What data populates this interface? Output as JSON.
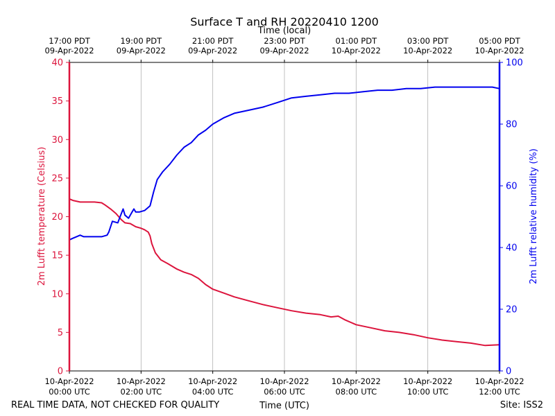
{
  "chart_data": {
    "type": "line",
    "title": "Surface T and RH 20220410 1200",
    "xlabel_bottom": "Time (UTC)",
    "xlabel_top": "Time (local)",
    "ylabel_left": "2m Lufft temperature (Celsius)",
    "ylabel_right": "2m Lufft relative humidity (%)",
    "x_unit": "hours since 10-Apr-2022 00:00 UTC",
    "xlim": [
      0,
      12
    ],
    "ylim_left": [
      0,
      40
    ],
    "ylim_right": [
      0,
      100
    ],
    "yticks_left": [
      0,
      5,
      10,
      15,
      20,
      25,
      30,
      35,
      40
    ],
    "yticks_right": [
      0,
      20,
      40,
      60,
      80,
      100
    ],
    "grid": "vertical",
    "colors": {
      "temperature": "#dc143c",
      "humidity": "#0000ee",
      "grid": "#b0b0b0"
    },
    "xticks_bottom": [
      {
        "x": 0,
        "line1": "10-Apr-2022",
        "line2": "00:00 UTC"
      },
      {
        "x": 2,
        "line1": "10-Apr-2022",
        "line2": "02:00 UTC"
      },
      {
        "x": 4,
        "line1": "10-Apr-2022",
        "line2": "04:00 UTC"
      },
      {
        "x": 6,
        "line1": "10-Apr-2022",
        "line2": "06:00 UTC"
      },
      {
        "x": 8,
        "line1": "10-Apr-2022",
        "line2": "08:00 UTC"
      },
      {
        "x": 10,
        "line1": "10-Apr-2022",
        "line2": "10:00 UTC"
      },
      {
        "x": 12,
        "line1": "10-Apr-2022",
        "line2": "12:00 UTC"
      }
    ],
    "xticks_top": [
      {
        "x": 0,
        "line1": "17:00 PDT",
        "line2": "09-Apr-2022"
      },
      {
        "x": 2,
        "line1": "19:00 PDT",
        "line2": "09-Apr-2022"
      },
      {
        "x": 4,
        "line1": "21:00 PDT",
        "line2": "09-Apr-2022"
      },
      {
        "x": 6,
        "line1": "23:00 PDT",
        "line2": "09-Apr-2022"
      },
      {
        "x": 8,
        "line1": "01:00 PDT",
        "line2": "10-Apr-2022"
      },
      {
        "x": 10,
        "line1": "03:00 PDT",
        "line2": "10-Apr-2022"
      },
      {
        "x": 12,
        "line1": "05:00 PDT",
        "line2": "10-Apr-2022"
      }
    ],
    "series": [
      {
        "name": "2m Lufft temperature (Celsius)",
        "axis": "left",
        "x": [
          0,
          0.1,
          0.3,
          0.5,
          0.7,
          0.9,
          1.0,
          1.15,
          1.3,
          1.45,
          1.55,
          1.7,
          1.85,
          2.0,
          2.1,
          2.2,
          2.25,
          2.3,
          2.4,
          2.55,
          2.75,
          3.0,
          3.2,
          3.4,
          3.6,
          3.8,
          4.0,
          4.3,
          4.6,
          5.0,
          5.4,
          5.8,
          6.2,
          6.6,
          7.0,
          7.3,
          7.5,
          7.7,
          8.0,
          8.4,
          8.8,
          9.2,
          9.6,
          10.0,
          10.4,
          10.8,
          11.2,
          11.6,
          12.0
        ],
        "values": [
          22.3,
          22.1,
          21.9,
          21.9,
          21.9,
          21.8,
          21.5,
          21.0,
          20.4,
          19.6,
          19.2,
          19.1,
          18.7,
          18.5,
          18.3,
          18.0,
          17.5,
          16.5,
          15.3,
          14.4,
          13.9,
          13.2,
          12.8,
          12.5,
          12.0,
          11.2,
          10.6,
          10.1,
          9.6,
          9.1,
          8.6,
          8.2,
          7.8,
          7.5,
          7.3,
          7.0,
          7.1,
          6.6,
          6.0,
          5.6,
          5.2,
          5.0,
          4.7,
          4.3,
          4.0,
          3.8,
          3.6,
          3.3,
          3.4
        ]
      },
      {
        "name": "2m Lufft relative humidity (%)",
        "axis": "right",
        "x": [
          0,
          0.1,
          0.2,
          0.3,
          0.4,
          0.5,
          0.7,
          0.9,
          1.05,
          1.1,
          1.2,
          1.35,
          1.4,
          1.5,
          1.55,
          1.65,
          1.75,
          1.8,
          1.85,
          1.95,
          2.1,
          2.25,
          2.35,
          2.45,
          2.6,
          2.8,
          3.0,
          3.2,
          3.4,
          3.6,
          3.8,
          4.0,
          4.3,
          4.6,
          5.0,
          5.4,
          5.8,
          6.2,
          6.6,
          7.0,
          7.4,
          7.8,
          8.2,
          8.6,
          9.0,
          9.4,
          9.8,
          10.2,
          10.6,
          11.0,
          11.4,
          11.8,
          12.0
        ],
        "values": [
          42.5,
          43.0,
          43.5,
          44.0,
          43.5,
          43.5,
          43.5,
          43.5,
          44.0,
          45.0,
          48.5,
          48.0,
          49.5,
          52.5,
          50.5,
          49.5,
          51.5,
          52.5,
          51.5,
          51.5,
          52.0,
          53.5,
          58.0,
          62.0,
          64.5,
          67.0,
          70.0,
          72.5,
          74.0,
          76.5,
          78.0,
          80.0,
          82.0,
          83.5,
          84.5,
          85.5,
          87.0,
          88.5,
          89.0,
          89.5,
          90.0,
          90.0,
          90.5,
          91.0,
          91.0,
          91.5,
          91.5,
          92.0,
          92.0,
          92.0,
          92.0,
          92.0,
          91.5
        ]
      }
    ]
  },
  "footer": {
    "left": "REAL TIME DATA, NOT CHECKED FOR QUALITY",
    "right": "Site: ISS2"
  }
}
